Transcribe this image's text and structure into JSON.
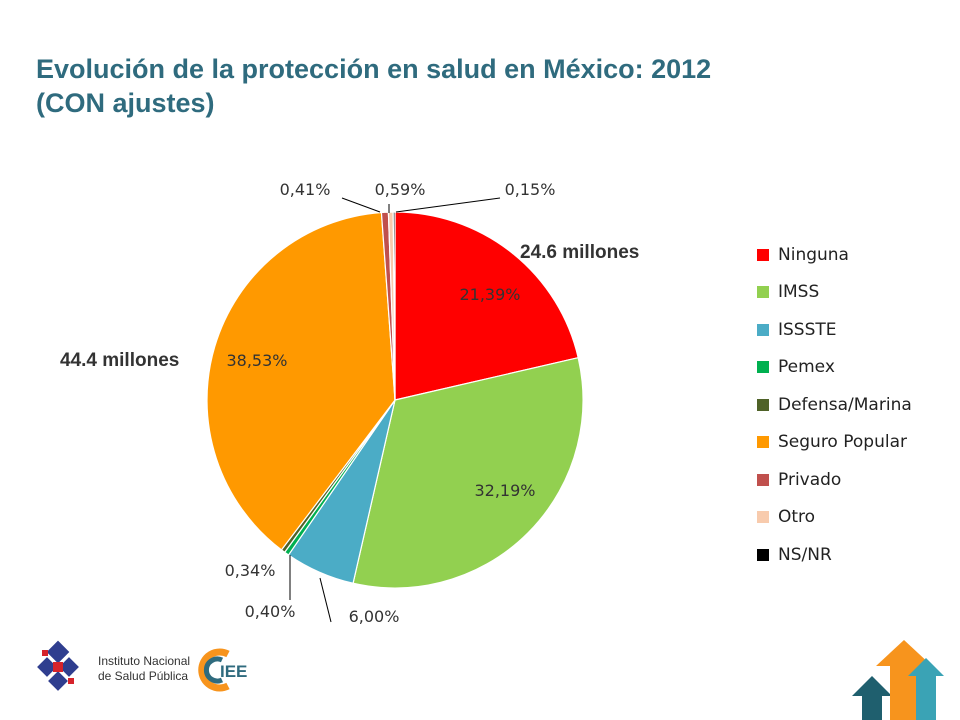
{
  "title": {
    "line1": "Evolución de la protección en salud en México: 2012",
    "line2": "(CON ajustes)"
  },
  "chart_data": {
    "type": "pie",
    "title": "Evolución de la protección en salud en México: 2012 (CON ajustes)",
    "start_angle_deg": 0,
    "direction": "clockwise",
    "legend_position": "right",
    "slices": [
      {
        "name": "Ninguna",
        "value": 21.39,
        "label": "21,39%",
        "color": "#ff0000"
      },
      {
        "name": "IMSS",
        "value": 32.19,
        "label": "32,19%",
        "color": "#92d050"
      },
      {
        "name": "ISSSTE",
        "value": 6.0,
        "label": "6,00%",
        "color": "#4bacc6"
      },
      {
        "name": "Pemex",
        "value": 0.4,
        "label": "0,40%",
        "color": "#00b050"
      },
      {
        "name": "Defensa/Marina",
        "value": 0.34,
        "label": "0,34%",
        "color": "#4f6228"
      },
      {
        "name": "Seguro Popular",
        "value": 38.53,
        "label": "38,53%",
        "color": "#ff9900"
      },
      {
        "name": "Privado",
        "value": 0.59,
        "label": "0,59%",
        "color": "#c0504d"
      },
      {
        "name": "Otro",
        "value": 0.41,
        "label": "0,41%",
        "color": "#f8cbad"
      },
      {
        "name": "NS/NR",
        "value": 0.15,
        "label": "0,15%",
        "color": "#000000"
      }
    ],
    "annotations": [
      {
        "text": "24.6 millones",
        "slice": "Ninguna"
      },
      {
        "text": "44.4 millones",
        "slice": "Seguro Popular"
      }
    ]
  },
  "logos": {
    "insp_line1": "Instituto Nacional",
    "insp_line2": "de Salud Pública",
    "ciee_text": "IEE"
  }
}
